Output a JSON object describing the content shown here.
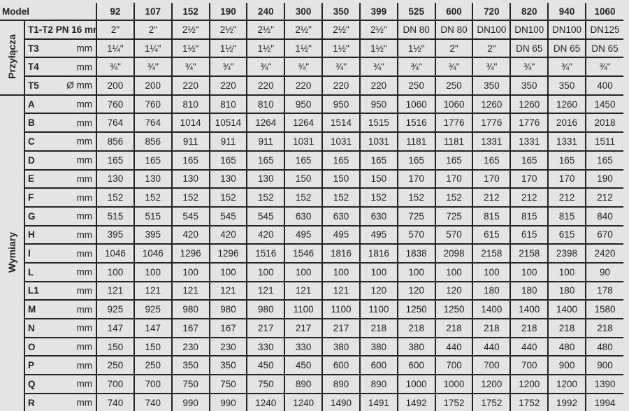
{
  "header": {
    "label": "Model",
    "models": [
      "92",
      "107",
      "152",
      "190",
      "240",
      "300",
      "350",
      "399",
      "525",
      "600",
      "720",
      "820",
      "940",
      "1060"
    ]
  },
  "groups": [
    {
      "label": "Przyłącza",
      "rows": [
        {
          "param": "T1-T2 PN 16 mm",
          "unit": "",
          "values": [
            "2\"",
            "2\"",
            "2½\"",
            "2½\"",
            "2½\"",
            "2½\"",
            "2½\"",
            "2½\"",
            "DN 80",
            "DN 80",
            "DN100",
            "DN100",
            "DN100",
            "DN125"
          ]
        },
        {
          "param": "T3",
          "unit": "mm",
          "values": [
            "1¼\"",
            "1¼\"",
            "1½\"",
            "1½\"",
            "1½\"",
            "1½\"",
            "1½\"",
            "1½\"",
            "1½\"",
            "2\"",
            "2\"",
            "DN 65",
            "DN 65",
            "DN 65"
          ]
        },
        {
          "param": "T4",
          "unit": "mm",
          "values": [
            "¾\"",
            "¾\"",
            "¾\"",
            "¾\"",
            "¾\"",
            "¾\"",
            "¾\"",
            "¾\"",
            "¾\"",
            "¾\"",
            "¾\"",
            "¾\"",
            "¾\"",
            "¾\""
          ]
        },
        {
          "param": "T5",
          "unit": "Ø mm",
          "values": [
            "200",
            "200",
            "220",
            "220",
            "220",
            "220",
            "220",
            "220",
            "250",
            "250",
            "350",
            "350",
            "350",
            "400"
          ]
        }
      ]
    },
    {
      "label": "Wymiary",
      "rows": [
        {
          "param": "A",
          "unit": "mm",
          "values": [
            "760",
            "760",
            "810",
            "810",
            "810",
            "950",
            "950",
            "950",
            "1060",
            "1060",
            "1260",
            "1260",
            "1260",
            "1450"
          ]
        },
        {
          "param": "B",
          "unit": "mm",
          "values": [
            "764",
            "764",
            "1014",
            "10514",
            "1264",
            "1264",
            "1514",
            "1515",
            "1516",
            "1776",
            "1776",
            "1776",
            "2016",
            "2018"
          ]
        },
        {
          "param": "C",
          "unit": "mm",
          "values": [
            "856",
            "856",
            "911",
            "911",
            "911",
            "1031",
            "1031",
            "1031",
            "1181",
            "1181",
            "1331",
            "1331",
            "1331",
            "1511"
          ]
        },
        {
          "param": "D",
          "unit": "mm",
          "values": [
            "165",
            "165",
            "165",
            "165",
            "165",
            "165",
            "165",
            "165",
            "165",
            "165",
            "165",
            "165",
            "165",
            "165"
          ]
        },
        {
          "param": "E",
          "unit": "mm",
          "values": [
            "130",
            "130",
            "130",
            "130",
            "130",
            "150",
            "150",
            "150",
            "170",
            "170",
            "170",
            "170",
            "170",
            "190"
          ]
        },
        {
          "param": "F",
          "unit": "mm",
          "values": [
            "152",
            "152",
            "152",
            "152",
            "152",
            "152",
            "152",
            "152",
            "152",
            "152",
            "212",
            "212",
            "212",
            "212"
          ]
        },
        {
          "param": "G",
          "unit": "mm",
          "values": [
            "515",
            "515",
            "545",
            "545",
            "545",
            "630",
            "630",
            "630",
            "725",
            "725",
            "815",
            "815",
            "815",
            "840"
          ]
        },
        {
          "param": "H",
          "unit": "mm",
          "values": [
            "395",
            "395",
            "420",
            "420",
            "420",
            "495",
            "495",
            "495",
            "570",
            "570",
            "615",
            "615",
            "615",
            "670"
          ]
        },
        {
          "param": "I",
          "unit": "mm",
          "values": [
            "1046",
            "1046",
            "1296",
            "1296",
            "1516",
            "1546",
            "1816",
            "1816",
            "1838",
            "2098",
            "2158",
            "2158",
            "2398",
            "2420"
          ]
        },
        {
          "param": "L",
          "unit": "mm",
          "values": [
            "100",
            "100",
            "100",
            "100",
            "100",
            "100",
            "100",
            "100",
            "100",
            "100",
            "100",
            "100",
            "100",
            "90"
          ]
        },
        {
          "param": "L1",
          "unit": "mm",
          "values": [
            "121",
            "121",
            "121",
            "121",
            "121",
            "121",
            "121",
            "120",
            "120",
            "120",
            "180",
            "180",
            "180",
            "178"
          ]
        },
        {
          "param": "M",
          "unit": "mm",
          "values": [
            "925",
            "925",
            "980",
            "980",
            "980",
            "1100",
            "1100",
            "1100",
            "1250",
            "1250",
            "1400",
            "1400",
            "1400",
            "1580"
          ]
        },
        {
          "param": "N",
          "unit": "mm",
          "values": [
            "147",
            "147",
            "167",
            "167",
            "217",
            "217",
            "217",
            "218",
            "218",
            "218",
            "218",
            "218",
            "218",
            "218"
          ]
        },
        {
          "param": "O",
          "unit": "mm",
          "values": [
            "150",
            "150",
            "230",
            "230",
            "330",
            "330",
            "380",
            "380",
            "380",
            "440",
            "440",
            "440",
            "480",
            "480"
          ]
        },
        {
          "param": "P",
          "unit": "mm",
          "values": [
            "250",
            "250",
            "350",
            "350",
            "450",
            "450",
            "600",
            "600",
            "600",
            "700",
            "700",
            "700",
            "900",
            "900"
          ]
        },
        {
          "param": "Q",
          "unit": "mm",
          "values": [
            "700",
            "700",
            "750",
            "750",
            "750",
            "890",
            "890",
            "890",
            "1000",
            "1000",
            "1200",
            "1200",
            "1200",
            "1390"
          ]
        },
        {
          "param": "R",
          "unit": "mm",
          "values": [
            "740",
            "740",
            "990",
            "990",
            "1240",
            "1240",
            "1490",
            "1491",
            "1492",
            "1752",
            "1752",
            "1752",
            "1992",
            "1994"
          ]
        }
      ]
    }
  ]
}
